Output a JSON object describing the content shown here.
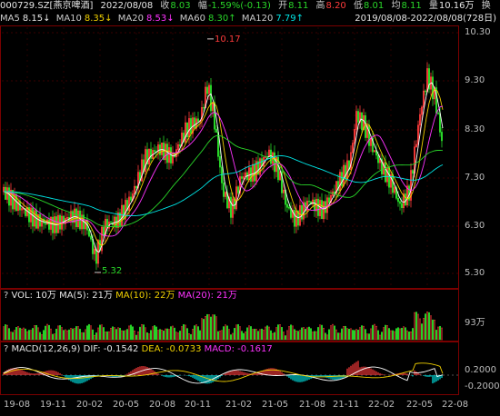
{
  "header": {
    "code": "000729.SZ[燕京啤酒]",
    "date": "2022/08/08",
    "close_label": "收",
    "close_value": "8.03",
    "change_label": "幅",
    "change_value": "-1.59%(-0.13)",
    "open_label": "开",
    "open_value": "8.11",
    "high_label": "高",
    "high_value": "8.20",
    "low_label": "低",
    "low_value": "8.01",
    "avg_label": "均",
    "avg_value": "8.11",
    "volume_label": "量",
    "volume_value": "10.16万",
    "turnover_label": "换",
    "range_text": "2019/08/08-2022/08/08(728日)"
  },
  "ma_line": {
    "ma5_label": "MA5",
    "ma5_value": "8.15↓",
    "ma10_label": "MA10",
    "ma10_value": "8.35↓",
    "ma20_label": "MA20",
    "ma20_value": "8.53↓",
    "ma60_label": "MA60",
    "ma60_value": "8.30↑",
    "ma120_label": "MA120",
    "ma120_value": "7.79↑"
  },
  "price_axis": [
    "10.30",
    "9.30",
    "8.30",
    "7.30",
    "6.30",
    "5.30"
  ],
  "price_annotations": {
    "high": "10.17",
    "low": "5.32"
  },
  "vol_line": {
    "q": "?",
    "vol_label": "VOL: 10万",
    "ma5": "MA(5): 21万",
    "ma10": "MA(10): 22万",
    "ma20": "MA(20): 21万"
  },
  "vol_axis": [
    "93万"
  ],
  "macd_line": {
    "q": "?",
    "title": "MACD(12,26,9)",
    "dif": "DIF: -0.1542",
    "dea": "DEA: -0.0733",
    "macd": "MACD: -0.1617"
  },
  "macd_axis": [
    "0.2000",
    "-0.2000"
  ],
  "x_axis": [
    "19-08",
    "19-11",
    "20-02",
    "20-05",
    "20-08",
    "20-11",
    "21-02",
    "21-05",
    "21-08",
    "21-11",
    "22-02",
    "22-05",
    "22-08"
  ],
  "colors": {
    "up": "#ff3b3b",
    "down": "#29d629",
    "ma5": "#ffffff",
    "ma10": "#f0d000",
    "ma20": "#ff33ff",
    "ma60": "#29d629",
    "ma120": "#00e6e6"
  }
}
